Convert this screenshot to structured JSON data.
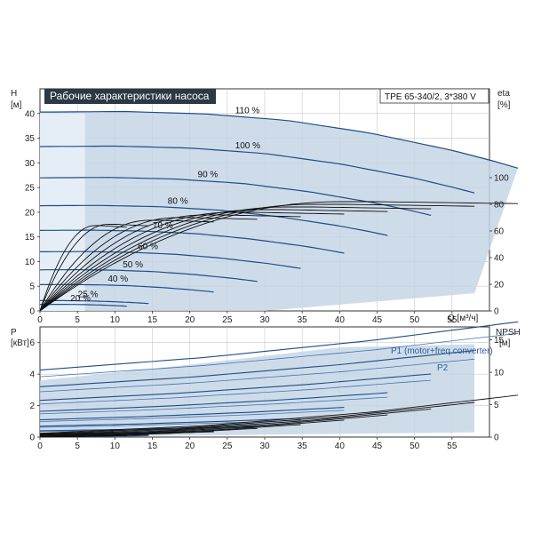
{
  "chart_data": [
    {
      "type": "line",
      "title": "Рабочие характеристики насоса",
      "model": "TPE 65-340/2, 3*380 V",
      "xlabel": "Q [м³/ч]",
      "ylabel": "H",
      "ylabel_unit": "[м]",
      "y2label": "eta",
      "y2label_unit": "[%]",
      "xlim": [
        0,
        60
      ],
      "ylim": [
        0,
        45
      ],
      "y2lim": [
        0,
        100
      ],
      "x_ticks": [
        "0",
        "5",
        "10",
        "15",
        "20",
        "25",
        "30",
        "35",
        "40",
        "45",
        "50",
        "55"
      ],
      "y_ticks": [
        "0",
        "5",
        "10",
        "15",
        "20",
        "25",
        "30",
        "35",
        "40"
      ],
      "y2_ticks": [
        "0",
        "20",
        "40",
        "60",
        "80",
        "100"
      ],
      "series": [
        {
          "name": "110 %",
          "speed": 1.1
        },
        {
          "name": "100 %",
          "speed": 1.0
        },
        {
          "name": "90 %",
          "speed": 0.9
        },
        {
          "name": "80 %",
          "speed": 0.8
        },
        {
          "name": "70 %",
          "speed": 0.7
        },
        {
          "name": "60 %",
          "speed": 0.6
        },
        {
          "name": "50 %",
          "speed": 0.5
        },
        {
          "name": "40 %",
          "speed": 0.4
        },
        {
          "name": "25 %",
          "speed": 0.25
        },
        {
          "name": "20 %",
          "speed": 0.2
        }
      ],
      "curve_100": {
        "x": [
          0,
          10,
          20,
          30,
          40,
          50,
          55,
          58
        ],
        "y": [
          33.3,
          33.4,
          33.0,
          31.9,
          29.8,
          26.9,
          25.1,
          23.9
        ]
      },
      "eta_max": 80,
      "grid": true,
      "area_color": "#c6d6e6",
      "curve_color": "#1f4e86"
    },
    {
      "type": "line",
      "ylabel": "P",
      "ylabel_unit": "[кВт]",
      "y2label": "NPSH",
      "y2label_unit": "[м]",
      "xlim": [
        0,
        60
      ],
      "ylim": [
        0,
        7
      ],
      "y2lim": [
        0,
        17
      ],
      "x_ticks": [
        "0",
        "5",
        "10",
        "15",
        "20",
        "25",
        "30",
        "35",
        "40",
        "45",
        "50",
        "55"
      ],
      "y_ticks": [
        "0",
        "2",
        "4",
        "6"
      ],
      "y2_ticks": [
        "0",
        "5",
        "10",
        "15"
      ],
      "series": [
        {
          "name": "P1 (motor+freq.converter)"
        },
        {
          "name": "P2"
        }
      ],
      "p1_100": {
        "x": [
          0,
          20,
          40,
          58
        ],
        "y": [
          3.2,
          3.8,
          4.6,
          5.5
        ]
      },
      "p1_110": {
        "x": [
          0,
          20,
          40,
          58
        ],
        "y": [
          3.6,
          4.6,
          5.7,
          5.9
        ]
      },
      "npsh": {
        "x": [
          0,
          20,
          40,
          58
        ],
        "y": [
          0.2,
          0.6,
          1.3,
          2.2
        ]
      },
      "grid": true
    }
  ]
}
